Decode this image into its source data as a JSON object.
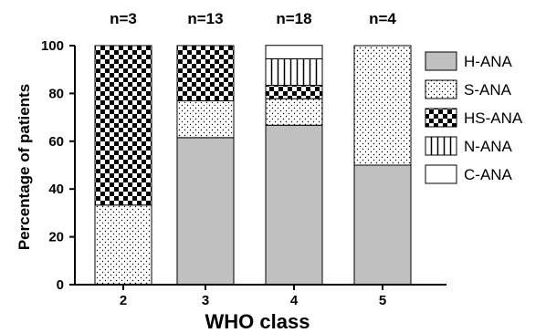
{
  "chart_data": {
    "type": "bar",
    "stacked": true,
    "categories": [
      "2",
      "3",
      "4",
      "5"
    ],
    "group_counts": [
      "n=3",
      "n=13",
      "n=18",
      "n=4"
    ],
    "series": [
      {
        "name": "H-ANA",
        "values": [
          0,
          61.5,
          66.7,
          50
        ],
        "color": "#c0c0c0",
        "pattern": "solid"
      },
      {
        "name": "S-ANA",
        "values": [
          33.3,
          15.4,
          11.1,
          50
        ],
        "color": "#ffffff",
        "pattern": "dots"
      },
      {
        "name": "HS-ANA",
        "values": [
          66.7,
          23.1,
          5.6,
          0
        ],
        "color": "#000000",
        "pattern": "checker"
      },
      {
        "name": "N-ANA",
        "values": [
          0,
          0,
          11.1,
          0
        ],
        "color": "#ffffff",
        "pattern": "vertical-lines"
      },
      {
        "name": "C-ANA",
        "values": [
          0,
          0,
          5.6,
          0
        ],
        "color": "#ffffff",
        "pattern": "blank"
      }
    ],
    "xlabel": "WHO class",
    "ylabel": "Percentage of patients",
    "ylim": [
      0,
      100
    ],
    "yticks": [
      0,
      20,
      40,
      60,
      80,
      100
    ],
    "legend_position": "right",
    "grid": false
  }
}
